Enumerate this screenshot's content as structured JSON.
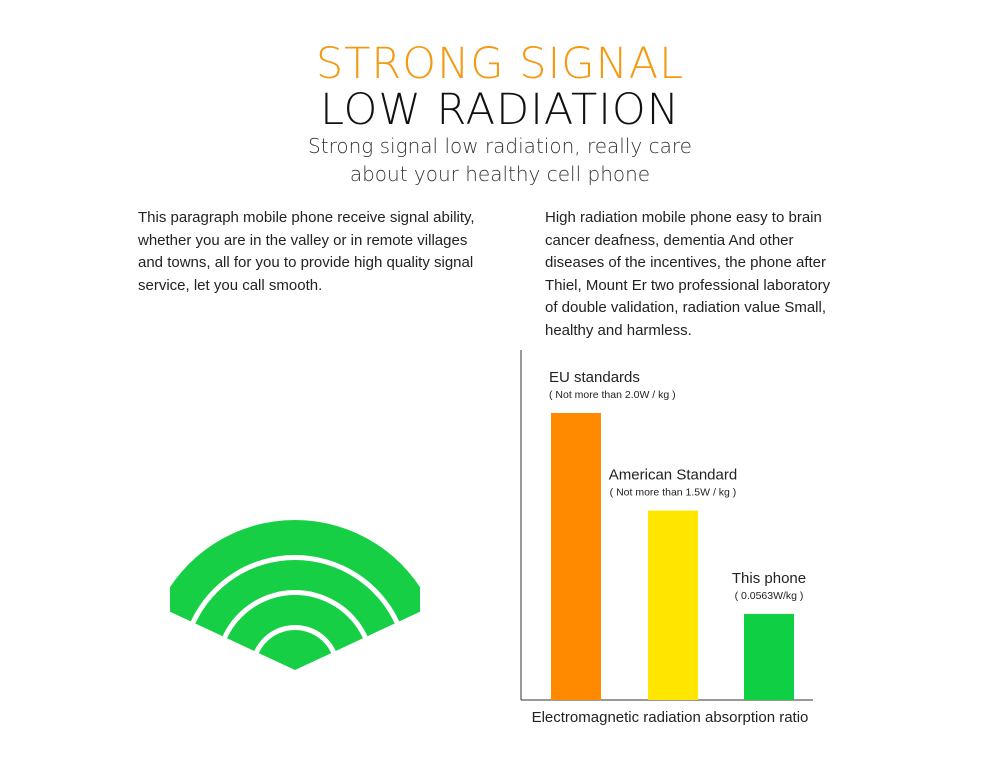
{
  "header": {
    "title_line1": "STRONG SIGNAL",
    "title_line2": "LOW RADIATION",
    "subtitle_line1": "Strong signal low radiation, really care",
    "subtitle_line2": "about your healthy cell phone"
  },
  "paragraphs": {
    "left": [
      "This paragraph mobile phone receive signal ability,",
      "whether you are in the valley or in remote villages",
      "and towns, all for you to provide high quality signal",
      "service, let you call smooth."
    ],
    "right": [
      "High radiation mobile phone easy to brain",
      "cancer deafness, dementia And other",
      "diseases of the incentives, the phone after",
      "Thiel, Mount Er two professional laboratory",
      "of double validation, radiation value Small,",
      "healthy and harmless."
    ]
  },
  "icons": {
    "signal": "wifi-icon",
    "signal_color": "#17cf45"
  },
  "chart_data": {
    "type": "bar",
    "categories": [
      "EU standards",
      "American Standard",
      "This phone"
    ],
    "notes": [
      "( Not more than 2.0W / kg )",
      "( Not more than 1.5W / kg )",
      "( 0.0563W/kg )"
    ],
    "values": [
      2.0,
      1.5,
      0.0563
    ],
    "relative_heights": [
      1.0,
      0.66,
      0.3
    ],
    "colors": [
      "#ff8a00",
      "#ffe600",
      "#0fcf44"
    ],
    "xlabel": "Electromagnetic radiation absorption ratio",
    "ylabel": "",
    "grid": false,
    "legend": "none"
  }
}
